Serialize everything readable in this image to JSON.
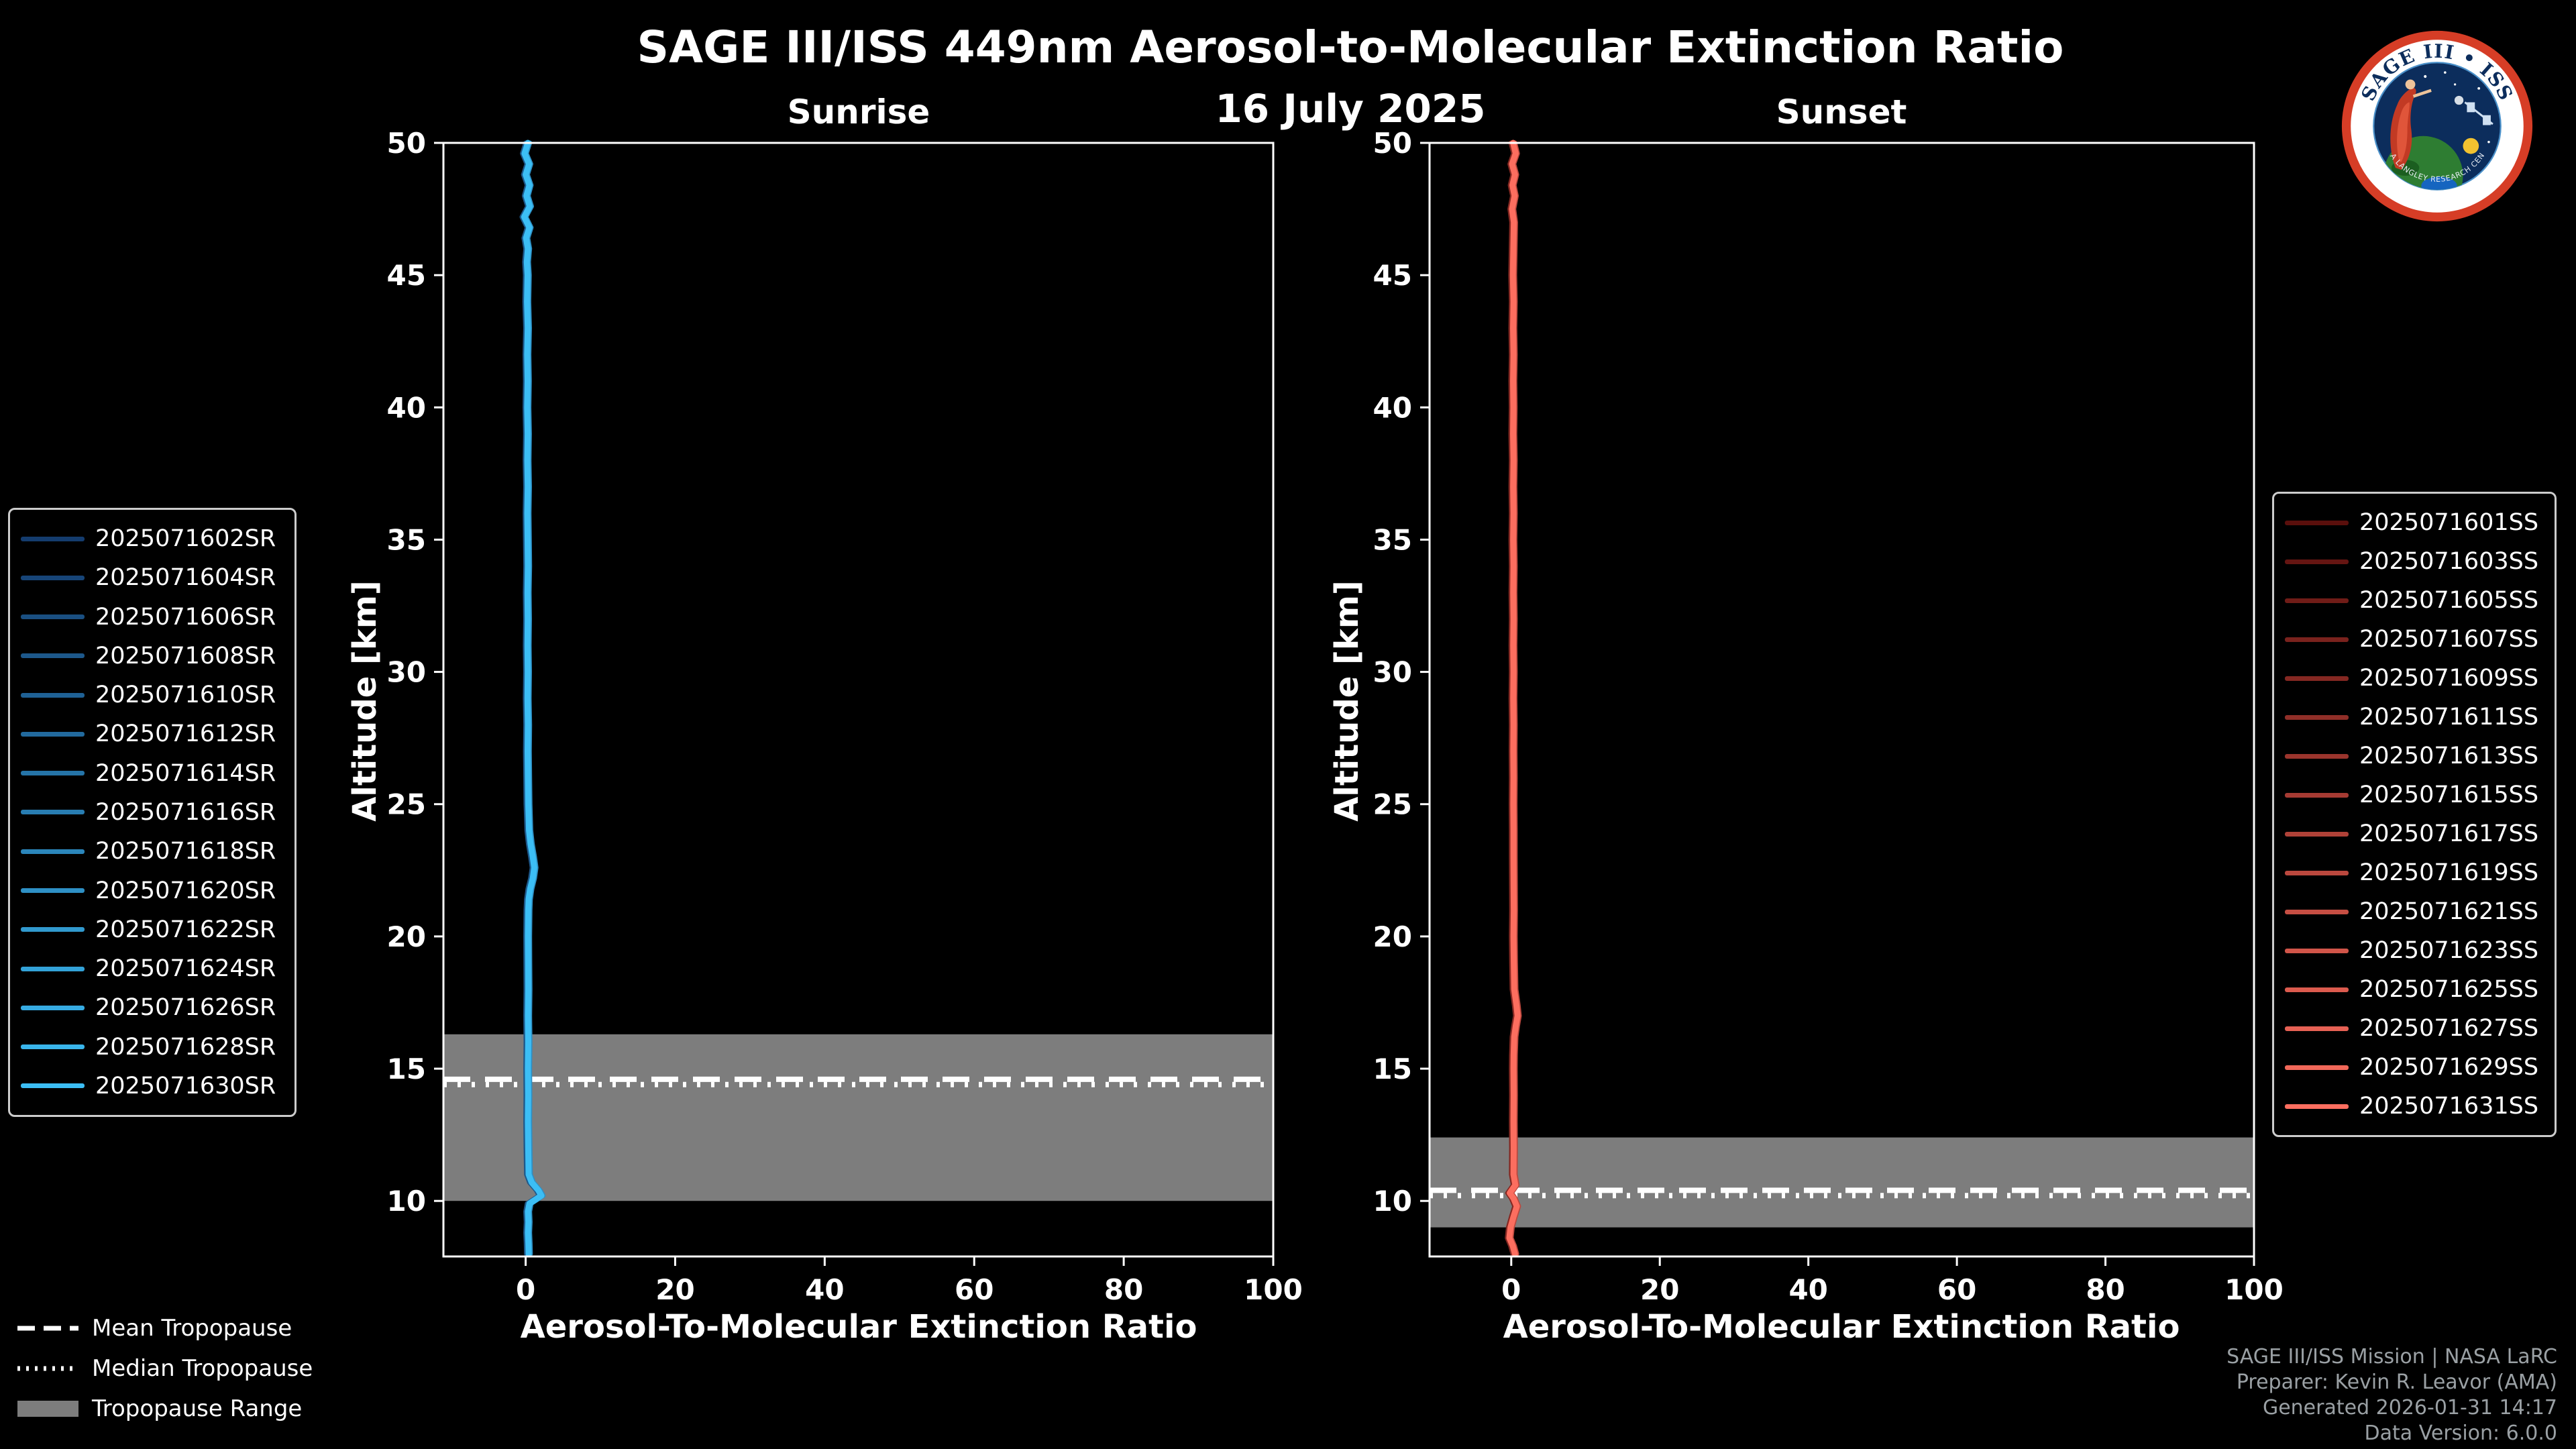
{
  "header": {
    "title": "SAGE III/ISS 449nm Aerosol-to-Molecular Extinction Ratio",
    "date": "16 July 2025"
  },
  "logo": {
    "text": "SAGE III • ISS",
    "ring_text": "• NASA LANGLEY RESEARCH CENTER •"
  },
  "chart_data": [
    {
      "type": "line",
      "title": "Sunrise",
      "xlabel": "Aerosol-To-Molecular Extinction Ratio",
      "ylabel": "Altitude [km]",
      "xlim": [
        -11,
        100
      ],
      "ylim": [
        7.9,
        50
      ],
      "xticks": [
        0,
        20,
        40,
        60,
        80,
        100
      ],
      "yticks": [
        10,
        15,
        20,
        25,
        30,
        35,
        40,
        45,
        50
      ],
      "line_color": "#2FA8E8",
      "grid": false,
      "legend_position": "outside-left",
      "tropopause": {
        "mean": 14.6,
        "median": 14.4,
        "range": [
          10.0,
          16.3
        ]
      },
      "profile": [
        [
          50,
          0.3
        ],
        [
          49.6,
          -0.15
        ],
        [
          49.2,
          0.45
        ],
        [
          48.8,
          0.0
        ],
        [
          48.4,
          0.5
        ],
        [
          48,
          0.1
        ],
        [
          47.6,
          0.55
        ],
        [
          47.2,
          -0.2
        ],
        [
          46.8,
          0.5
        ],
        [
          46.4,
          0.05
        ],
        [
          46,
          0.3
        ],
        [
          45.5,
          0.15
        ],
        [
          45,
          0.25
        ],
        [
          44,
          0.18
        ],
        [
          43,
          0.28
        ],
        [
          42,
          0.2
        ],
        [
          41,
          0.26
        ],
        [
          40,
          0.2
        ],
        [
          39,
          0.27
        ],
        [
          38,
          0.22
        ],
        [
          37,
          0.28
        ],
        [
          36,
          0.22
        ],
        [
          35,
          0.26
        ],
        [
          34,
          0.3
        ],
        [
          33,
          0.24
        ],
        [
          32,
          0.28
        ],
        [
          31,
          0.24
        ],
        [
          30,
          0.28
        ],
        [
          29,
          0.24
        ],
        [
          28,
          0.3
        ],
        [
          27,
          0.26
        ],
        [
          26,
          0.3
        ],
        [
          25,
          0.34
        ],
        [
          24.5,
          0.4
        ],
        [
          24,
          0.45
        ],
        [
          23.5,
          0.65
        ],
        [
          23,
          0.95
        ],
        [
          22.6,
          1.15
        ],
        [
          22.2,
          0.95
        ],
        [
          21.8,
          0.6
        ],
        [
          21.4,
          0.4
        ],
        [
          21,
          0.34
        ],
        [
          20,
          0.3
        ],
        [
          19,
          0.32
        ],
        [
          18,
          0.34
        ],
        [
          17,
          0.3
        ],
        [
          16,
          0.34
        ],
        [
          15,
          0.3
        ],
        [
          14,
          0.33
        ],
        [
          13,
          0.3
        ],
        [
          12,
          0.34
        ],
        [
          11,
          0.4
        ],
        [
          10.7,
          0.8
        ],
        [
          10.4,
          1.7
        ],
        [
          10.2,
          2.1
        ],
        [
          10.05,
          1.3
        ],
        [
          9.9,
          0.5
        ],
        [
          9.6,
          0.3
        ],
        [
          9.2,
          0.36
        ],
        [
          8.8,
          0.3
        ],
        [
          8.4,
          0.36
        ],
        [
          8,
          0.4
        ]
      ]
    },
    {
      "type": "line",
      "title": "Sunset",
      "xlabel": "Aerosol-To-Molecular Extinction Ratio",
      "ylabel": "Altitude [km]",
      "xlim": [
        -11,
        100
      ],
      "ylim": [
        7.9,
        50
      ],
      "xticks": [
        0,
        20,
        40,
        60,
        80,
        100
      ],
      "yticks": [
        10,
        15,
        20,
        25,
        30,
        35,
        40,
        45,
        50
      ],
      "line_color": "#F26355",
      "grid": false,
      "legend_position": "outside-right",
      "tropopause": {
        "mean": 10.4,
        "median": 10.2,
        "range": [
          9.0,
          12.4
        ]
      },
      "profile": [
        [
          50,
          0.25
        ],
        [
          49.6,
          0.6
        ],
        [
          49.2,
          0.1
        ],
        [
          48.8,
          0.5
        ],
        [
          48.4,
          0.15
        ],
        [
          48,
          0.45
        ],
        [
          47.5,
          0.1
        ],
        [
          47,
          0.35
        ],
        [
          46,
          0.28
        ],
        [
          45,
          0.22
        ],
        [
          44,
          0.3
        ],
        [
          43,
          0.24
        ],
        [
          42,
          0.3
        ],
        [
          41,
          0.24
        ],
        [
          40,
          0.28
        ],
        [
          39,
          0.24
        ],
        [
          38,
          0.3
        ],
        [
          37,
          0.25
        ],
        [
          36,
          0.3
        ],
        [
          35,
          0.25
        ],
        [
          34,
          0.3
        ],
        [
          33,
          0.26
        ],
        [
          32,
          0.3
        ],
        [
          31,
          0.26
        ],
        [
          30,
          0.3
        ],
        [
          29,
          0.26
        ],
        [
          28,
          0.3
        ],
        [
          27,
          0.27
        ],
        [
          26,
          0.3
        ],
        [
          25,
          0.27
        ],
        [
          24,
          0.3
        ],
        [
          23,
          0.3
        ],
        [
          22,
          0.32
        ],
        [
          21,
          0.34
        ],
        [
          20,
          0.3
        ],
        [
          19,
          0.34
        ],
        [
          18,
          0.4
        ],
        [
          17.4,
          0.7
        ],
        [
          17,
          0.85
        ],
        [
          16.6,
          0.6
        ],
        [
          16.2,
          0.4
        ],
        [
          15.5,
          0.32
        ],
        [
          15,
          0.3
        ],
        [
          14,
          0.33
        ],
        [
          13,
          0.3
        ],
        [
          12,
          0.33
        ],
        [
          11,
          0.3
        ],
        [
          10.6,
          0.55
        ],
        [
          10.3,
          -0.2
        ],
        [
          10.1,
          0.3
        ],
        [
          9.8,
          0.75
        ],
        [
          9.4,
          0.3
        ],
        [
          9,
          -0.1
        ],
        [
          8.6,
          -0.25
        ],
        [
          8.3,
          0.2
        ],
        [
          8,
          0.5
        ]
      ]
    }
  ],
  "legend_sunrise": {
    "items": [
      {
        "label": "2025071602SR",
        "color": "#143C6E"
      },
      {
        "label": "2025071604SR",
        "color": "#174578"
      },
      {
        "label": "2025071606SR",
        "color": "#1A4F81"
      },
      {
        "label": "2025071608SR",
        "color": "#1D588B"
      },
      {
        "label": "2025071610SR",
        "color": "#1F6195"
      },
      {
        "label": "2025071612SR",
        "color": "#226A9E"
      },
      {
        "label": "2025071614SR",
        "color": "#2574A8"
      },
      {
        "label": "2025071616SR",
        "color": "#287DB2"
      },
      {
        "label": "2025071618SR",
        "color": "#2B86BB"
      },
      {
        "label": "2025071620SR",
        "color": "#2E90C5"
      },
      {
        "label": "2025071622SR",
        "color": "#3199CE"
      },
      {
        "label": "2025071624SR",
        "color": "#33A2D8"
      },
      {
        "label": "2025071626SR",
        "color": "#36ABE2"
      },
      {
        "label": "2025071628SR",
        "color": "#39B5EB"
      },
      {
        "label": "2025071630SR",
        "color": "#3CBEF5"
      }
    ]
  },
  "legend_sunset": {
    "items": [
      {
        "label": "2025071601SS",
        "color": "#5A0F0C"
      },
      {
        "label": "2025071603SS",
        "color": "#651512"
      },
      {
        "label": "2025071605SS",
        "color": "#701C17"
      },
      {
        "label": "2025071607SS",
        "color": "#7A221D"
      },
      {
        "label": "2025071609SS",
        "color": "#852822"
      },
      {
        "label": "2025071611SS",
        "color": "#902F28"
      },
      {
        "label": "2025071613SS",
        "color": "#9B352D"
      },
      {
        "label": "2025071615SS",
        "color": "#A63B33"
      },
      {
        "label": "2025071617SS",
        "color": "#B04238"
      },
      {
        "label": "2025071619SS",
        "color": "#BB483E"
      },
      {
        "label": "2025071621SS",
        "color": "#C64E43"
      },
      {
        "label": "2025071623SS",
        "color": "#D15549"
      },
      {
        "label": "2025071625SS",
        "color": "#DC5B4E"
      },
      {
        "label": "2025071627SS",
        "color": "#E66154"
      },
      {
        "label": "2025071629SS",
        "color": "#F16859"
      },
      {
        "label": "2025071631SS",
        "color": "#FC6E5F"
      }
    ]
  },
  "tropopause_legend": {
    "mean_label": "Mean Tropopause",
    "median_label": "Median Tropopause",
    "range_label": "Tropopause Range",
    "line_color": "#FFFFFF",
    "range_color": "#7D7D7D"
  },
  "credits": {
    "line1": "SAGE III/ISS Mission | NASA LaRC",
    "line2": "Preparer: Kevin R. Leavor (AMA)",
    "line3": "Generated 2026-01-31 14:17",
    "line4": "Data Version: 6.0.0"
  }
}
